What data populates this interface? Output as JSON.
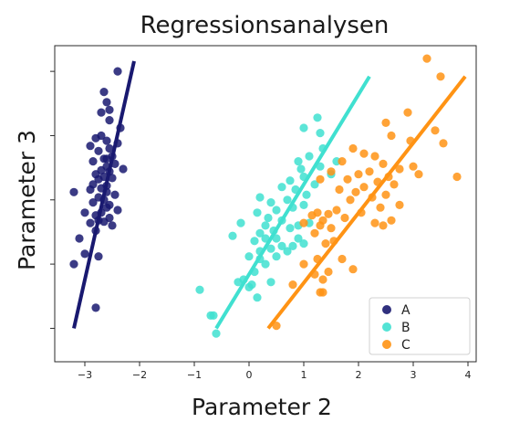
{
  "chart_data": {
    "type": "scatter",
    "title": "Regressionsanalysen",
    "xlabel": "Parameter 2",
    "ylabel": "Parameter 3",
    "xlim": [
      -3.55,
      4.15
    ],
    "ylim": [
      -6.3,
      6.0
    ],
    "x_ticks": [
      -3,
      -2,
      -1,
      0,
      1,
      2,
      3,
      4
    ],
    "y_ticks_labeled": false,
    "grid": false,
    "legend_position": "bottom-right",
    "series": [
      {
        "name": "A",
        "color": "#191970",
        "regression_line": [
          [
            -3.2,
            -5.0
          ],
          [
            -2.1,
            5.4
          ]
        ],
        "points": [
          [
            -2.4,
            5.0
          ],
          [
            -2.65,
            4.2
          ],
          [
            -2.6,
            3.8
          ],
          [
            -2.7,
            3.4
          ],
          [
            -2.55,
            3.1
          ],
          [
            -2.35,
            2.8
          ],
          [
            -2.7,
            2.5
          ],
          [
            -2.8,
            2.4
          ],
          [
            -2.6,
            2.3
          ],
          [
            -2.4,
            2.2
          ],
          [
            -2.9,
            2.1
          ],
          [
            -2.55,
            2.0
          ],
          [
            -2.75,
            1.9
          ],
          [
            -2.5,
            1.7
          ],
          [
            -2.65,
            1.6
          ],
          [
            -2.85,
            1.5
          ],
          [
            -2.45,
            1.4
          ],
          [
            -2.6,
            1.3
          ],
          [
            -2.3,
            1.2
          ],
          [
            -2.7,
            1.15
          ],
          [
            -2.55,
            1.1
          ],
          [
            -2.8,
            1.0
          ],
          [
            -2.65,
            0.9
          ],
          [
            -2.5,
            0.85
          ],
          [
            -2.75,
            0.8
          ],
          [
            -2.85,
            0.6
          ],
          [
            -2.6,
            0.55
          ],
          [
            -2.7,
            0.45
          ],
          [
            -2.9,
            0.4
          ],
          [
            -2.6,
            0.3
          ],
          [
            -2.45,
            0.2
          ],
          [
            -2.75,
            0.1
          ],
          [
            -2.65,
            0.0
          ],
          [
            -2.85,
            -0.1
          ],
          [
            -2.55,
            -0.2
          ],
          [
            -2.6,
            -0.3
          ],
          [
            -2.4,
            -0.4
          ],
          [
            -2.7,
            -0.5
          ],
          [
            -3.0,
            -0.5
          ],
          [
            -2.8,
            -0.6
          ],
          [
            -2.55,
            -0.7
          ],
          [
            -2.75,
            -0.8
          ],
          [
            -2.65,
            -0.85
          ],
          [
            -2.9,
            -0.9
          ],
          [
            -2.5,
            -1.0
          ],
          [
            -2.8,
            -1.2
          ],
          [
            -3.1,
            -1.5
          ],
          [
            -2.75,
            -2.2
          ],
          [
            -3.2,
            0.3
          ],
          [
            -3.0,
            -2.1
          ],
          [
            -3.2,
            -2.5
          ],
          [
            -2.8,
            -4.2
          ],
          [
            -2.55,
            3.5
          ],
          [
            -2.6,
            1.6
          ]
        ]
      },
      {
        "name": "B",
        "color": "#40E0D0",
        "regression_line": [
          [
            -0.6,
            -5.0
          ],
          [
            2.2,
            4.8
          ]
        ],
        "points": [
          [
            -0.6,
            -5.2
          ],
          [
            -0.7,
            -4.5
          ],
          [
            -0.9,
            -3.5
          ],
          [
            -0.65,
            -4.5
          ],
          [
            -0.2,
            -3.2
          ],
          [
            0.05,
            -3.3
          ],
          [
            0.0,
            -3.4
          ],
          [
            -0.1,
            -3.1
          ],
          [
            0.15,
            -3.8
          ],
          [
            0.4,
            -3.2
          ],
          [
            0.1,
            -2.8
          ],
          [
            0.3,
            -2.5
          ],
          [
            0.2,
            -2.3
          ],
          [
            0.0,
            -2.2
          ],
          [
            0.5,
            -2.2
          ],
          [
            0.2,
            -2.0
          ],
          [
            0.7,
            -2.0
          ],
          [
            0.4,
            -1.9
          ],
          [
            0.6,
            -1.8
          ],
          [
            0.8,
            -1.8
          ],
          [
            1.0,
            -1.7
          ],
          [
            0.1,
            -1.6
          ],
          [
            0.3,
            -1.5
          ],
          [
            0.5,
            -1.5
          ],
          [
            0.9,
            -1.5
          ],
          [
            -0.3,
            -1.4
          ],
          [
            0.2,
            -1.3
          ],
          [
            0.45,
            -1.2
          ],
          [
            0.75,
            -1.1
          ],
          [
            0.3,
            -1.0
          ],
          [
            0.9,
            -1.0
          ],
          [
            -0.15,
            -0.9
          ],
          [
            0.6,
            -0.8
          ],
          [
            0.35,
            -0.7
          ],
          [
            1.1,
            -0.9
          ],
          [
            0.15,
            -0.5
          ],
          [
            0.5,
            -0.4
          ],
          [
            0.8,
            -0.3
          ],
          [
            1.0,
            -0.2
          ],
          [
            0.4,
            -0.1
          ],
          [
            0.7,
            0.0
          ],
          [
            0.2,
            0.1
          ],
          [
            1.05,
            0.2
          ],
          [
            0.85,
            0.4
          ],
          [
            0.6,
            0.5
          ],
          [
            1.2,
            0.6
          ],
          [
            0.75,
            0.75
          ],
          [
            1.0,
            0.9
          ],
          [
            1.5,
            1.0
          ],
          [
            0.95,
            1.2
          ],
          [
            1.3,
            1.3
          ],
          [
            0.9,
            1.5
          ],
          [
            1.6,
            1.5
          ],
          [
            1.1,
            1.7
          ],
          [
            1.35,
            2.0
          ],
          [
            1.3,
            2.6
          ],
          [
            1.0,
            2.8
          ],
          [
            1.25,
            3.2
          ]
        ]
      },
      {
        "name": "C",
        "color": "#FF9314",
        "regression_line": [
          [
            0.35,
            -5.0
          ],
          [
            3.95,
            4.8
          ]
        ],
        "points": [
          [
            3.25,
            5.5
          ],
          [
            3.5,
            4.8
          ],
          [
            2.9,
            3.4
          ],
          [
            2.5,
            3.0
          ],
          [
            3.4,
            2.7
          ],
          [
            2.6,
            2.5
          ],
          [
            2.95,
            2.3
          ],
          [
            3.55,
            2.2
          ],
          [
            1.9,
            2.0
          ],
          [
            2.1,
            1.8
          ],
          [
            2.3,
            1.7
          ],
          [
            1.7,
            1.5
          ],
          [
            2.45,
            1.4
          ],
          [
            3.0,
            1.3
          ],
          [
            2.75,
            1.2
          ],
          [
            2.2,
            1.1
          ],
          [
            1.5,
            1.1
          ],
          [
            2.0,
            1.0
          ],
          [
            3.1,
            1.0
          ],
          [
            2.55,
            0.9
          ],
          [
            3.8,
            0.9
          ],
          [
            1.8,
            0.8
          ],
          [
            1.3,
            0.8
          ],
          [
            2.35,
            0.7
          ],
          [
            2.65,
            0.6
          ],
          [
            2.1,
            0.5
          ],
          [
            1.65,
            0.4
          ],
          [
            1.95,
            0.3
          ],
          [
            2.5,
            0.2
          ],
          [
            2.25,
            0.1
          ],
          [
            1.85,
            0.0
          ],
          [
            2.75,
            -0.2
          ],
          [
            2.4,
            -0.3
          ],
          [
            1.6,
            -0.4
          ],
          [
            2.05,
            -0.5
          ],
          [
            1.25,
            -0.5
          ],
          [
            1.45,
            -0.55
          ],
          [
            1.15,
            -0.6
          ],
          [
            1.75,
            -0.7
          ],
          [
            1.35,
            -0.8
          ],
          [
            2.6,
            -0.8
          ],
          [
            2.3,
            -0.9
          ],
          [
            1.0,
            -0.9
          ],
          [
            1.3,
            -1.0
          ],
          [
            2.45,
            -1.0
          ],
          [
            1.5,
            -1.1
          ],
          [
            1.2,
            -1.3
          ],
          [
            1.55,
            -1.6
          ],
          [
            1.4,
            -1.7
          ],
          [
            1.25,
            -2.3
          ],
          [
            1.7,
            -2.3
          ],
          [
            1.0,
            -2.5
          ],
          [
            1.9,
            -2.7
          ],
          [
            1.45,
            -2.8
          ],
          [
            1.2,
            -2.9
          ],
          [
            1.35,
            -3.1
          ],
          [
            0.8,
            -3.3
          ],
          [
            1.3,
            -3.6
          ],
          [
            1.35,
            -3.6
          ],
          [
            0.5,
            -4.9
          ]
        ]
      }
    ]
  }
}
